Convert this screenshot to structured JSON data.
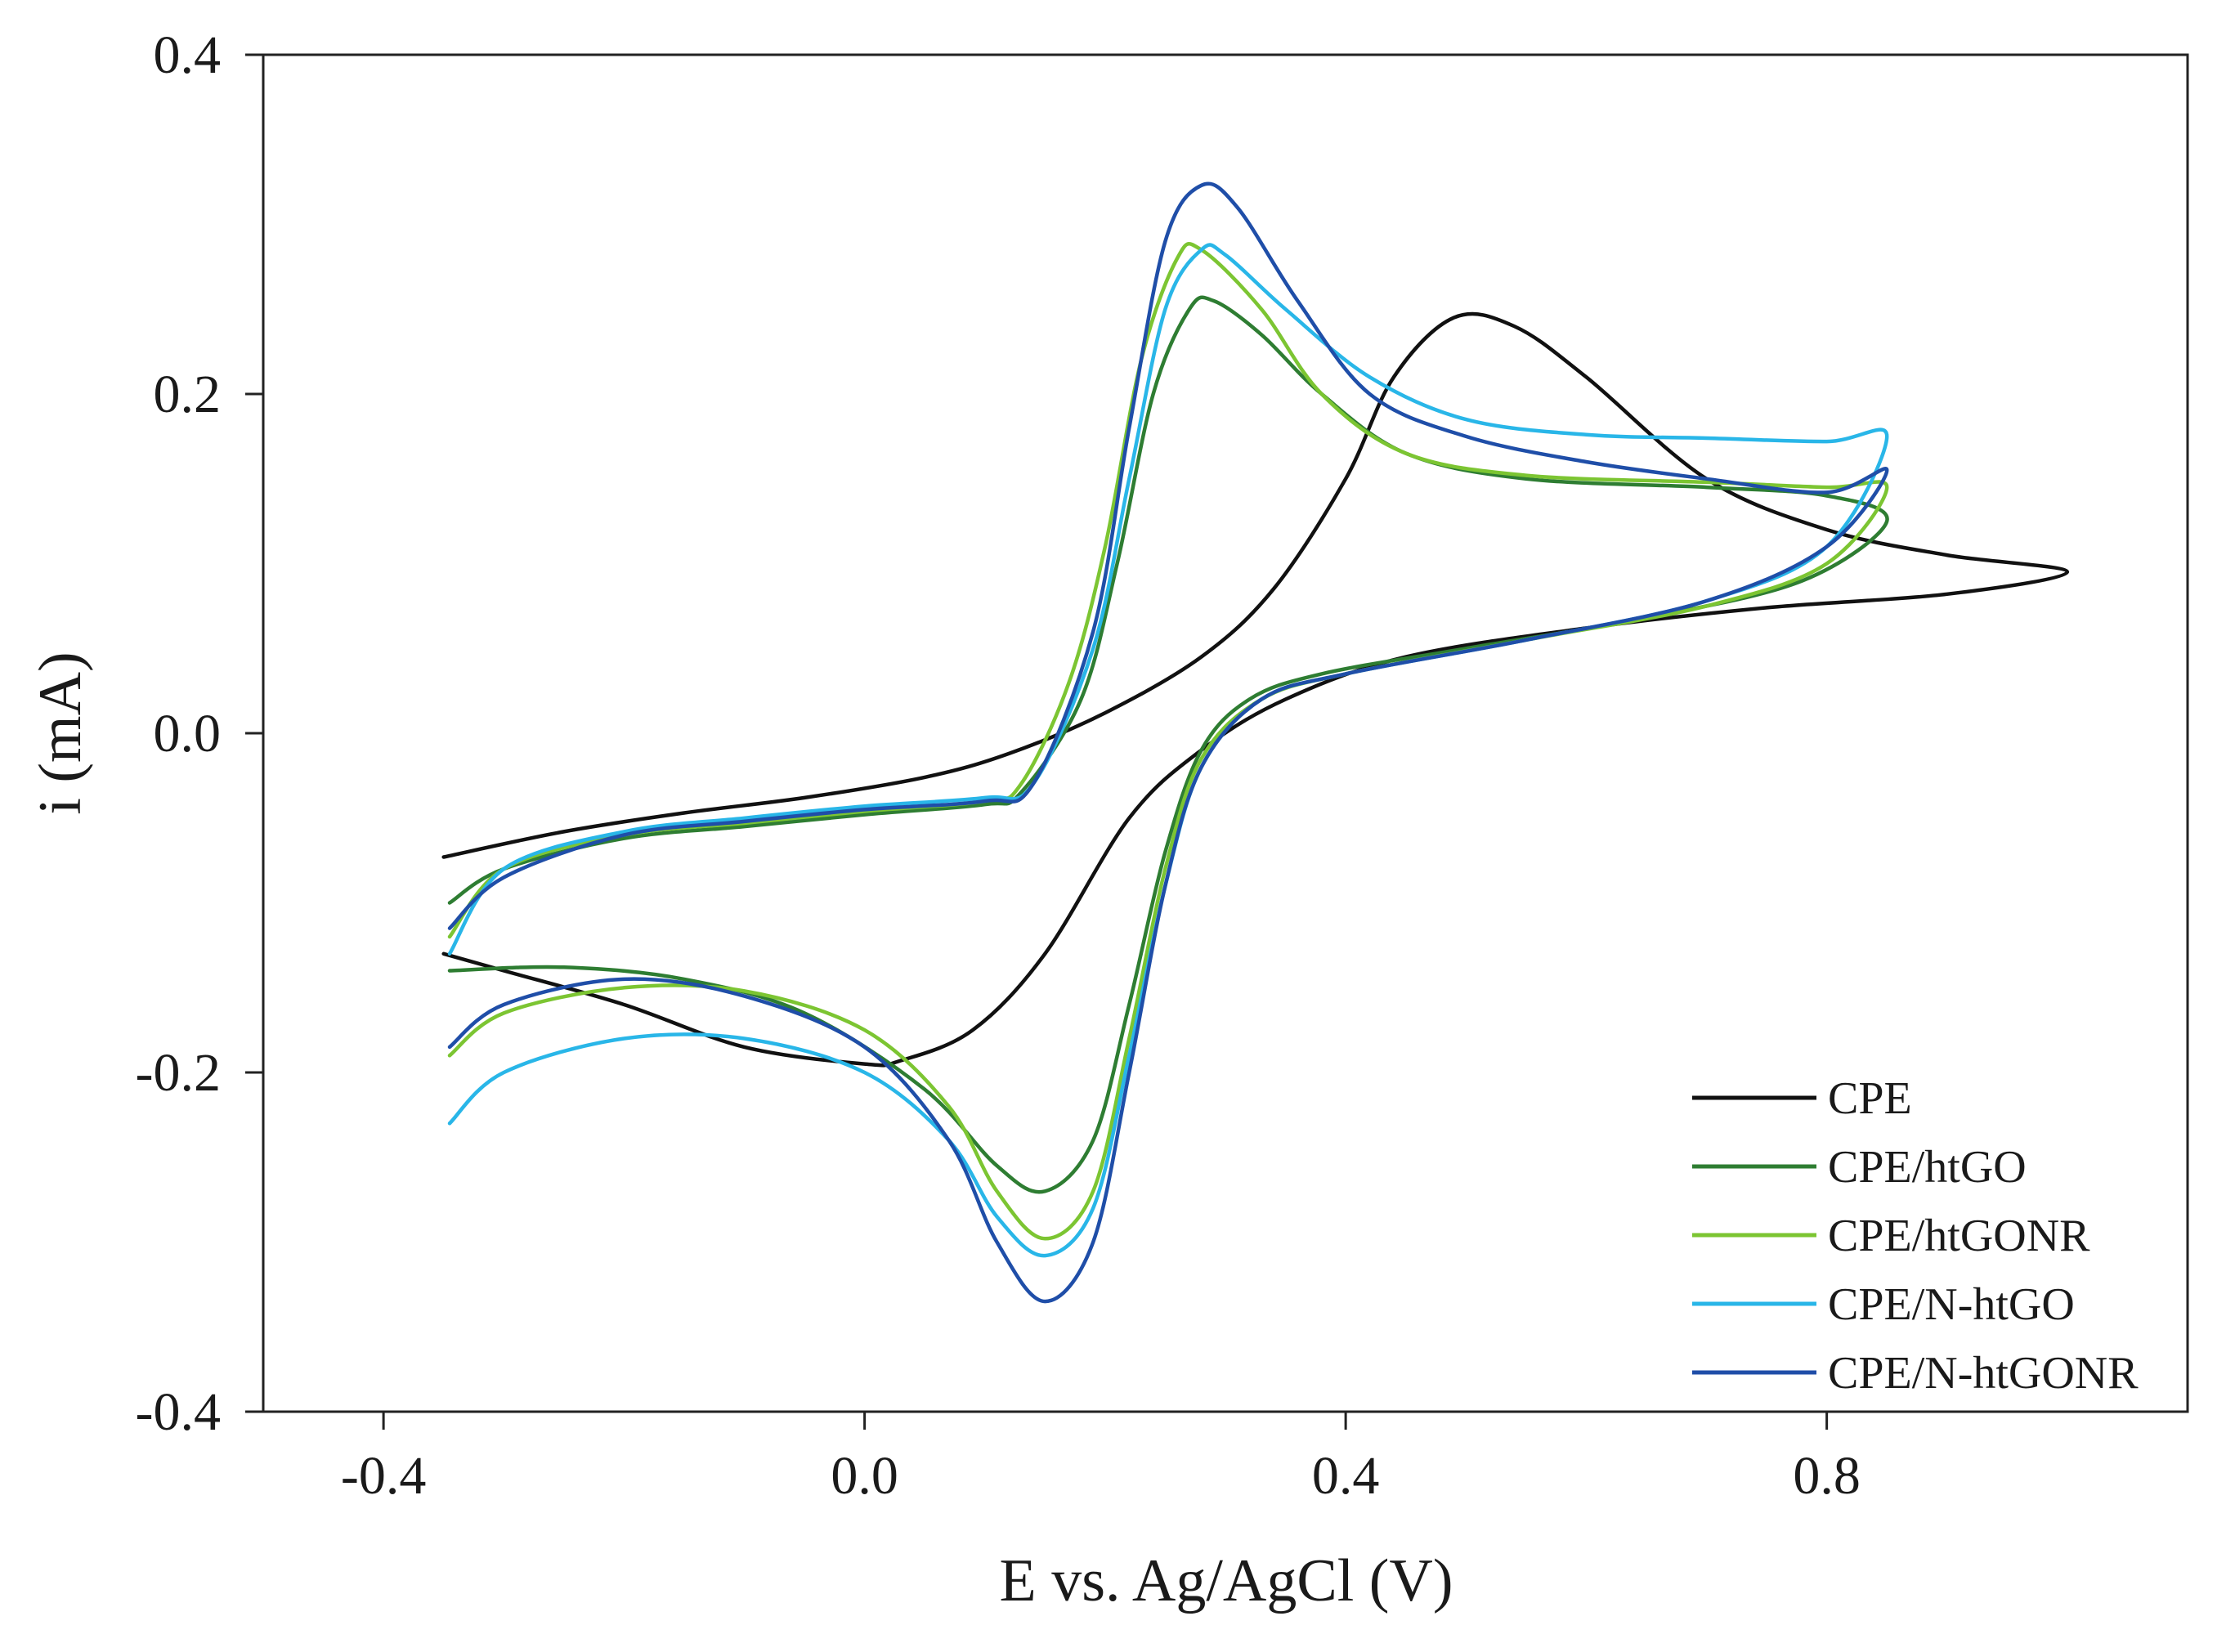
{
  "chart_data": {
    "type": "line",
    "title": "",
    "xlabel": "E vs. Ag/AgCl (V)",
    "ylabel": "i (mA)",
    "xlim": [
      -0.5,
      1.1
    ],
    "ylim": [
      -0.4,
      0.4
    ],
    "xticks": [
      -0.4,
      0.0,
      0.4,
      0.8
    ],
    "xtick_labels": [
      "-0.4",
      "0.0",
      "0.4",
      "0.8"
    ],
    "yticks": [
      -0.4,
      -0.2,
      0.0,
      0.2,
      0.4
    ],
    "ytick_labels": [
      "-0.4",
      "-0.2",
      "0.0",
      "0.2",
      "0.4"
    ],
    "grid": false,
    "legend_position": "bottom-right",
    "series": [
      {
        "name": "CPE",
        "color": "#111111",
        "points": [
          [
            -0.35,
            -0.073
          ],
          [
            -0.25,
            -0.058
          ],
          [
            -0.15,
            -0.047
          ],
          [
            -0.05,
            -0.038
          ],
          [
            0.05,
            -0.026
          ],
          [
            0.12,
            -0.012
          ],
          [
            0.2,
            0.012
          ],
          [
            0.28,
            0.045
          ],
          [
            0.34,
            0.085
          ],
          [
            0.4,
            0.15
          ],
          [
            0.44,
            0.21
          ],
          [
            0.49,
            0.245
          ],
          [
            0.54,
            0.24
          ],
          [
            0.6,
            0.21
          ],
          [
            0.7,
            0.15
          ],
          [
            0.8,
            0.12
          ],
          [
            0.9,
            0.105
          ],
          [
            1.0,
            0.095
          ],
          [
            0.9,
            0.082
          ],
          [
            0.75,
            0.074
          ],
          [
            0.6,
            0.062
          ],
          [
            0.45,
            0.045
          ],
          [
            0.35,
            0.02
          ],
          [
            0.28,
            -0.01
          ],
          [
            0.22,
            -0.05
          ],
          [
            0.15,
            -0.13
          ],
          [
            0.09,
            -0.175
          ],
          [
            0.03,
            -0.193
          ],
          [
            0.0,
            -0.195
          ],
          [
            -0.1,
            -0.185
          ],
          [
            -0.2,
            -0.16
          ],
          [
            -0.3,
            -0.14
          ],
          [
            -0.35,
            -0.13
          ]
        ]
      },
      {
        "name": "CPE/htGO",
        "color": "#2e7d32",
        "points": [
          [
            -0.345,
            -0.14
          ],
          [
            -0.25,
            -0.138
          ],
          [
            -0.15,
            -0.145
          ],
          [
            -0.05,
            -0.165
          ],
          [
            0.05,
            -0.21
          ],
          [
            0.11,
            -0.255
          ],
          [
            0.15,
            -0.27
          ],
          [
            0.19,
            -0.24
          ],
          [
            0.22,
            -0.16
          ],
          [
            0.25,
            -0.07
          ],
          [
            0.28,
            -0.01
          ],
          [
            0.32,
            0.02
          ],
          [
            0.38,
            0.035
          ],
          [
            0.5,
            0.05
          ],
          [
            0.65,
            0.068
          ],
          [
            0.78,
            0.09
          ],
          [
            0.85,
            0.125
          ],
          [
            0.8,
            0.14
          ],
          [
            0.7,
            0.145
          ],
          [
            0.55,
            0.15
          ],
          [
            0.45,
            0.165
          ],
          [
            0.38,
            0.2
          ],
          [
            0.33,
            0.235
          ],
          [
            0.29,
            0.255
          ],
          [
            0.27,
            0.25
          ],
          [
            0.24,
            0.2
          ],
          [
            0.21,
            0.1
          ],
          [
            0.18,
            0.02
          ],
          [
            0.13,
            -0.035
          ],
          [
            0.1,
            -0.042
          ],
          [
            0.0,
            -0.048
          ],
          [
            -0.1,
            -0.055
          ],
          [
            -0.2,
            -0.062
          ],
          [
            -0.3,
            -0.08
          ],
          [
            -0.345,
            -0.1
          ]
        ]
      },
      {
        "name": "CPE/htGONR",
        "color": "#7cc532",
        "points": [
          [
            -0.345,
            -0.19
          ],
          [
            -0.3,
            -0.165
          ],
          [
            -0.2,
            -0.15
          ],
          [
            -0.1,
            -0.152
          ],
          [
            0.0,
            -0.175
          ],
          [
            0.07,
            -0.22
          ],
          [
            0.11,
            -0.27
          ],
          [
            0.15,
            -0.298
          ],
          [
            0.19,
            -0.27
          ],
          [
            0.22,
            -0.18
          ],
          [
            0.25,
            -0.08
          ],
          [
            0.28,
            -0.015
          ],
          [
            0.33,
            0.02
          ],
          [
            0.4,
            0.035
          ],
          [
            0.55,
            0.055
          ],
          [
            0.7,
            0.075
          ],
          [
            0.8,
            0.1
          ],
          [
            0.85,
            0.145
          ],
          [
            0.8,
            0.145
          ],
          [
            0.7,
            0.148
          ],
          [
            0.55,
            0.152
          ],
          [
            0.45,
            0.165
          ],
          [
            0.38,
            0.2
          ],
          [
            0.33,
            0.25
          ],
          [
            0.28,
            0.285
          ],
          [
            0.26,
            0.28
          ],
          [
            0.23,
            0.22
          ],
          [
            0.2,
            0.11
          ],
          [
            0.17,
            0.03
          ],
          [
            0.13,
            -0.03
          ],
          [
            0.1,
            -0.04
          ],
          [
            0.0,
            -0.046
          ],
          [
            -0.1,
            -0.053
          ],
          [
            -0.2,
            -0.06
          ],
          [
            -0.3,
            -0.08
          ],
          [
            -0.345,
            -0.12
          ]
        ]
      },
      {
        "name": "CPE/N-htGO",
        "color": "#29b6e8",
        "points": [
          [
            -0.345,
            -0.23
          ],
          [
            -0.3,
            -0.2
          ],
          [
            -0.2,
            -0.18
          ],
          [
            -0.1,
            -0.18
          ],
          [
            0.0,
            -0.2
          ],
          [
            0.07,
            -0.24
          ],
          [
            0.11,
            -0.285
          ],
          [
            0.15,
            -0.308
          ],
          [
            0.19,
            -0.28
          ],
          [
            0.22,
            -0.19
          ],
          [
            0.25,
            -0.09
          ],
          [
            0.28,
            -0.02
          ],
          [
            0.33,
            0.02
          ],
          [
            0.4,
            0.035
          ],
          [
            0.55,
            0.055
          ],
          [
            0.7,
            0.078
          ],
          [
            0.8,
            0.11
          ],
          [
            0.85,
            0.175
          ],
          [
            0.8,
            0.172
          ],
          [
            0.7,
            0.174
          ],
          [
            0.6,
            0.176
          ],
          [
            0.5,
            0.185
          ],
          [
            0.42,
            0.21
          ],
          [
            0.35,
            0.25
          ],
          [
            0.3,
            0.282
          ],
          [
            0.28,
            0.285
          ],
          [
            0.25,
            0.25
          ],
          [
            0.22,
            0.15
          ],
          [
            0.19,
            0.05
          ],
          [
            0.14,
            -0.03
          ],
          [
            0.1,
            -0.038
          ],
          [
            0.0,
            -0.043
          ],
          [
            -0.1,
            -0.05
          ],
          [
            -0.2,
            -0.058
          ],
          [
            -0.3,
            -0.08
          ],
          [
            -0.345,
            -0.13
          ]
        ]
      },
      {
        "name": "CPE/N-htGONR",
        "color": "#1f4ea8",
        "points": [
          [
            -0.345,
            -0.185
          ],
          [
            -0.3,
            -0.16
          ],
          [
            -0.2,
            -0.145
          ],
          [
            -0.1,
            -0.155
          ],
          [
            0.0,
            -0.185
          ],
          [
            0.07,
            -0.24
          ],
          [
            0.11,
            -0.3
          ],
          [
            0.15,
            -0.335
          ],
          [
            0.19,
            -0.3
          ],
          [
            0.22,
            -0.2
          ],
          [
            0.25,
            -0.09
          ],
          [
            0.28,
            -0.02
          ],
          [
            0.33,
            0.02
          ],
          [
            0.4,
            0.035
          ],
          [
            0.55,
            0.055
          ],
          [
            0.7,
            0.078
          ],
          [
            0.8,
            0.11
          ],
          [
            0.85,
            0.155
          ],
          [
            0.8,
            0.142
          ],
          [
            0.7,
            0.15
          ],
          [
            0.6,
            0.16
          ],
          [
            0.5,
            0.175
          ],
          [
            0.42,
            0.2
          ],
          [
            0.36,
            0.255
          ],
          [
            0.31,
            0.31
          ],
          [
            0.28,
            0.323
          ],
          [
            0.25,
            0.29
          ],
          [
            0.22,
            0.18
          ],
          [
            0.19,
            0.06
          ],
          [
            0.14,
            -0.03
          ],
          [
            0.1,
            -0.04
          ],
          [
            0.0,
            -0.045
          ],
          [
            -0.1,
            -0.052
          ],
          [
            -0.2,
            -0.06
          ],
          [
            -0.3,
            -0.085
          ],
          [
            -0.345,
            -0.115
          ]
        ]
      }
    ]
  }
}
